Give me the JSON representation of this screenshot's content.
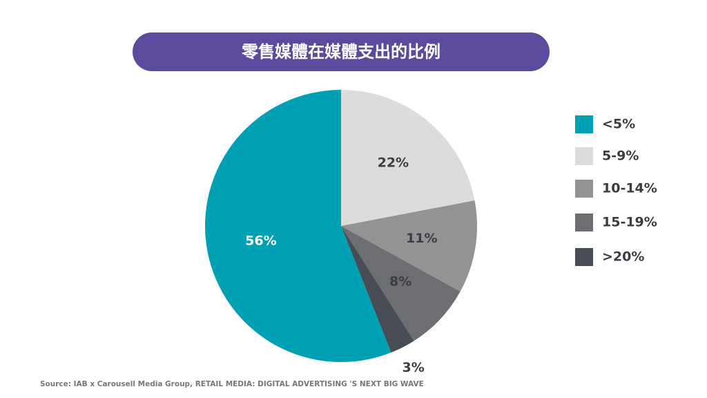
{
  "chart_data": {
    "type": "pie",
    "title": "零售媒體在媒體支出的比例",
    "categories": [
      "<5%",
      "5-9%",
      "10-14%",
      "15-19%",
      ">20%"
    ],
    "values": [
      56,
      22,
      11,
      8,
      3
    ],
    "value_labels": [
      "56%",
      "22%",
      "11%",
      "8%",
      "3%"
    ],
    "colors": [
      "#00a0b4",
      "#dcdcdc",
      "#939393",
      "#6d6e71",
      "#474c55"
    ],
    "legend": "right",
    "source": "Source: IAB x Carousell Media Group, RETAIL MEDIA: DIGITAL ADVERTISING 'S NEXT BIG WAVE"
  }
}
